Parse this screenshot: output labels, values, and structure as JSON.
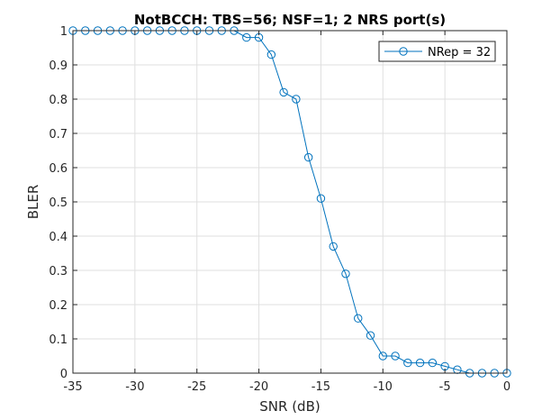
{
  "chart_data": {
    "type": "line",
    "title": "NotBCCH: TBS=56; NSF=1; 2 NRS port(s)",
    "xlabel": "SNR (dB)",
    "ylabel": "BLER",
    "xlim": [
      -35,
      0
    ],
    "ylim": [
      0,
      1
    ],
    "xticks": [
      -35,
      -30,
      -25,
      -20,
      -15,
      -10,
      -5,
      0
    ],
    "yticks": [
      0,
      0.1,
      0.2,
      0.3,
      0.4,
      0.5,
      0.6,
      0.7,
      0.8,
      0.9,
      1
    ],
    "xtick_labels": [
      "-35",
      "-30",
      "-25",
      "-20",
      "-15",
      "-10",
      "-5",
      "0"
    ],
    "ytick_labels": [
      "0",
      "0.1",
      "0.2",
      "0.3",
      "0.4",
      "0.5",
      "0.6",
      "0.7",
      "0.8",
      "0.9",
      "1"
    ],
    "grid": true,
    "legend_position": "top-right",
    "series": [
      {
        "name": "NRep = 32",
        "color": "#0072BD",
        "marker": "circle",
        "x": [
          -35,
          -34,
          -33,
          -32,
          -31,
          -30,
          -29,
          -28,
          -27,
          -26,
          -25,
          -24,
          -23,
          -22,
          -21,
          -20,
          -19,
          -18,
          -17,
          -16,
          -15,
          -14,
          -13,
          -12,
          -11,
          -10,
          -9,
          -8,
          -7,
          -6,
          -5,
          -4,
          -3,
          -2,
          -1,
          0
        ],
        "y": [
          1,
          1,
          1,
          1,
          1,
          1,
          1,
          1,
          1,
          1,
          1,
          1,
          1,
          1,
          0.98,
          0.98,
          0.93,
          0.82,
          0.8,
          0.63,
          0.51,
          0.37,
          0.29,
          0.16,
          0.11,
          0.05,
          0.05,
          0.03,
          0.03,
          0.03,
          0.02,
          0.01,
          0,
          0,
          0,
          0
        ]
      }
    ]
  }
}
